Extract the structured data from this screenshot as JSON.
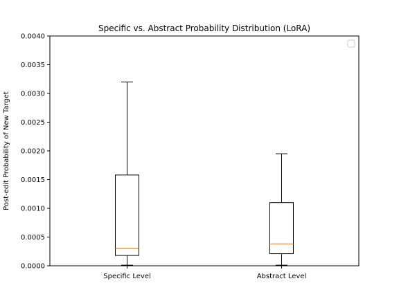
{
  "chart_data": {
    "type": "box",
    "title": "Specific vs. Abstract Probability Distribution (LoRA)",
    "xlabel": "",
    "ylabel": "Post-edit Probability of New Target",
    "ylim": [
      0,
      0.004
    ],
    "yticks": [
      "0.0000",
      "0.0005",
      "0.0010",
      "0.0015",
      "0.0020",
      "0.0025",
      "0.0030",
      "0.0035",
      "0.0040"
    ],
    "yticks_values": [
      0,
      0.0005,
      0.001,
      0.0015,
      0.002,
      0.0025,
      0.003,
      0.0035,
      0.004
    ],
    "categories": [
      "Specific Level",
      "Abstract Level"
    ],
    "boxes": [
      {
        "category": "Specific Level",
        "whisker_low": 1e-05,
        "q1": 0.00018,
        "median": 0.0003,
        "q3": 0.00158,
        "whisker_high": 0.0032
      },
      {
        "category": "Abstract Level",
        "whisker_low": 1e-05,
        "q1": 0.00021,
        "median": 0.00038,
        "q3": 0.0011,
        "whisker_high": 0.00195
      }
    ],
    "median_color": "#ff7f0e",
    "box_color": "#000000",
    "grid": false,
    "legend": {
      "placement": "upper-right",
      "entries": []
    }
  }
}
